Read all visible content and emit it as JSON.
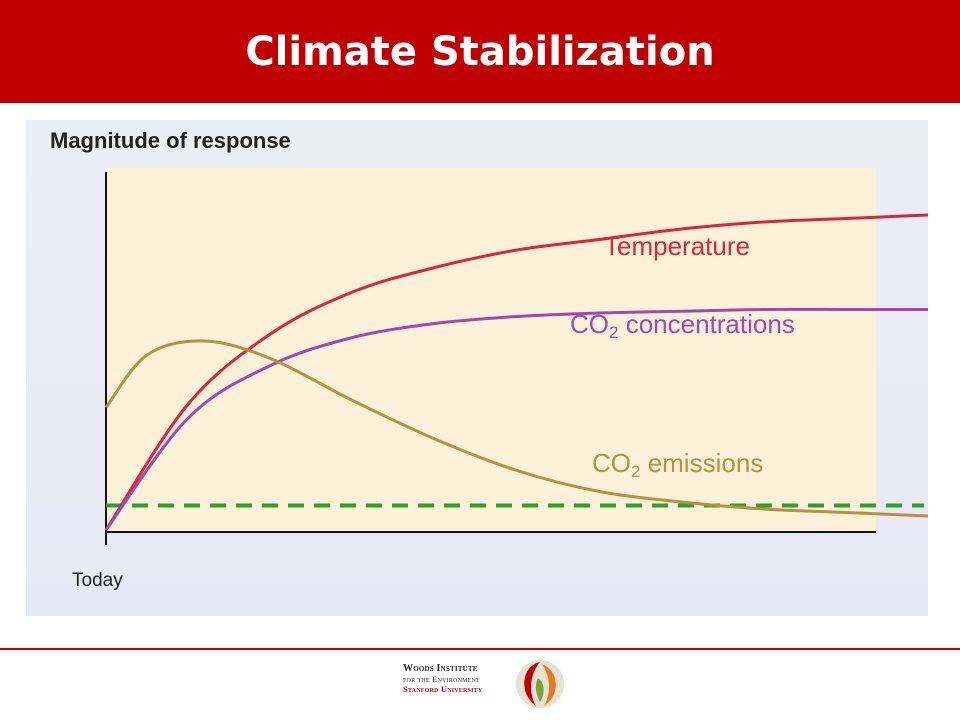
{
  "slide": {
    "title": "Climate Stabilization"
  },
  "footer": {
    "org_line1": "Woods Institute",
    "org_line2": "for the Environment",
    "org_line3": "Stanford University"
  },
  "colors": {
    "brand_red": "#c00000",
    "plot_bg": "#fdf1da",
    "temperature": "#d7263d",
    "co2_concentrations": "#a04ab0",
    "co2_emissions": "#b89040",
    "reference_line": "#2ca02c"
  },
  "chart_data": {
    "type": "line",
    "ylabel": "Magnitude of response",
    "xlabel": "",
    "x_start_label": "Today",
    "xlim": [
      0,
      10
    ],
    "ylim": [
      0,
      1
    ],
    "grid": false,
    "legend": "inline labels",
    "series": [
      {
        "name": "Temperature",
        "label_prefix": "Temperature",
        "label_subscript": "",
        "label_suffix": "",
        "color": "#d7263d",
        "x": [
          0,
          1,
          2,
          3,
          4,
          5,
          6,
          7,
          8,
          9,
          10
        ],
        "y": [
          0,
          0.36,
          0.56,
          0.68,
          0.75,
          0.8,
          0.83,
          0.86,
          0.88,
          0.89,
          0.9
        ]
      },
      {
        "name": "CO2 concentrations",
        "label_prefix": "CO",
        "label_subscript": "2",
        "label_suffix": " concentrations",
        "color": "#a04ab0",
        "x": [
          0,
          1,
          2,
          3,
          4,
          5,
          6,
          7,
          8,
          9,
          10
        ],
        "y": [
          0,
          0.32,
          0.47,
          0.55,
          0.59,
          0.61,
          0.62,
          0.625,
          0.63,
          0.63,
          0.63
        ]
      },
      {
        "name": "CO2 emissions",
        "label_prefix": "CO",
        "label_subscript": "2",
        "label_suffix": " emissions",
        "color": "#b89040",
        "x": [
          0,
          0.5,
          1.2,
          2,
          3,
          4,
          5,
          6,
          7,
          8,
          9,
          10
        ],
        "y": [
          0.35,
          0.5,
          0.54,
          0.49,
          0.37,
          0.26,
          0.17,
          0.11,
          0.08,
          0.06,
          0.05,
          0.04
        ]
      }
    ],
    "reference_line": {
      "y": 0.07,
      "style": "dashed",
      "color": "#2ca02c"
    }
  }
}
